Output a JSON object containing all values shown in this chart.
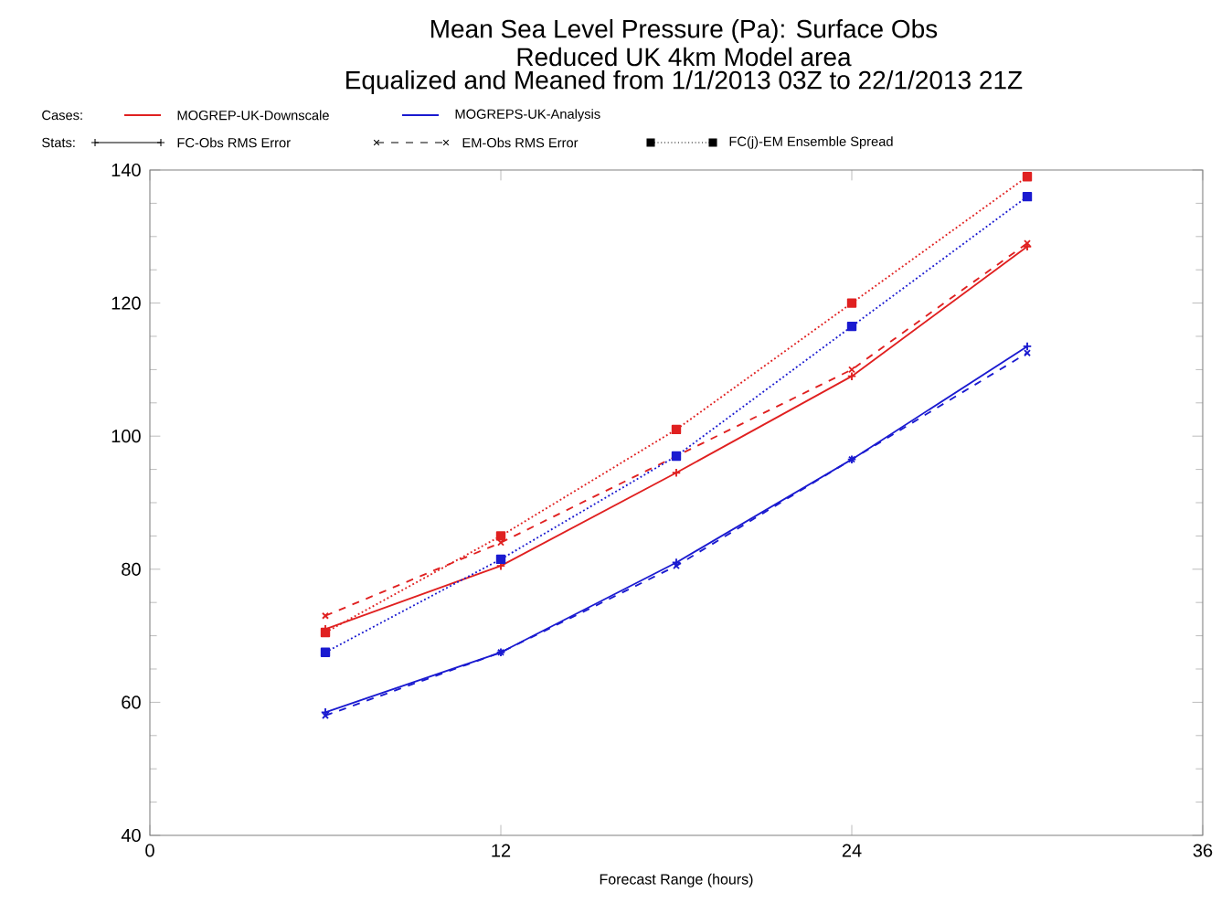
{
  "chart_data": {
    "type": "line",
    "title": "Mean Sea Level Pressure (Pa):  Surface Obs",
    "subtitle": "Reduced UK 4km Model area",
    "xlabel": "Forecast Range (hours)",
    "annotations": [
      "Equalized and Meaned from 1/1/2013 03Z to 22/1/2013 21Z",
      "Cases:",
      "MOGREP-UK-Downscale",
      "MOGREPS-UK-Analysis",
      "Stats:",
      "FC-Obs RMS Error",
      "EM-Obs RMS Error",
      "FC(j)-EM Ensemble Spread"
    ],
    "x": [
      6,
      12,
      18,
      24,
      30
    ],
    "series": [
      {
        "color": "#e02020",
        "line_style": "solid",
        "marker": "plus",
        "values": [
          71,
          80.5,
          94.5,
          109,
          128.5
        ]
      },
      {
        "color": "#e02020",
        "line_style": "dashed",
        "marker": "cross",
        "values": [
          73,
          84,
          97,
          110,
          129
        ]
      },
      {
        "color": "#e02020",
        "line_style": "dotted",
        "marker": "square",
        "values": [
          70.5,
          85,
          101,
          120,
          139
        ]
      },
      {
        "color": "#1a1ad0",
        "line_style": "solid",
        "marker": "plus",
        "values": [
          58.5,
          67.5,
          81,
          96.5,
          113.5
        ]
      },
      {
        "color": "#1a1ad0",
        "line_style": "dashed",
        "marker": "cross",
        "values": [
          58,
          67.5,
          80.5,
          96.5,
          112.5
        ]
      },
      {
        "color": "#1a1ad0",
        "line_style": "dotted",
        "marker": "square",
        "values": [
          67.5,
          81.5,
          97,
          116.5,
          136
        ]
      }
    ],
    "xlim": [
      0,
      36
    ],
    "ylim": [
      40,
      140
    ],
    "xticks": [
      0,
      12,
      24,
      36
    ],
    "yticks": [
      40,
      60,
      80,
      100,
      120,
      140
    ]
  }
}
